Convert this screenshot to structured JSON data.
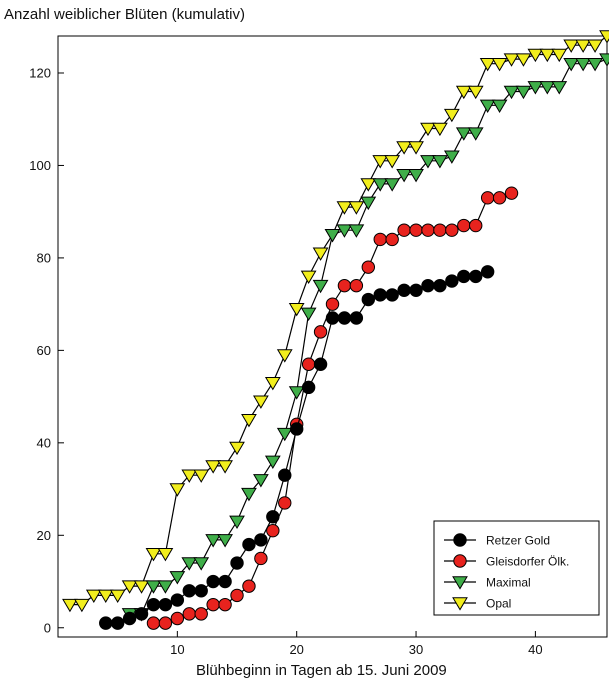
{
  "chart_data": {
    "type": "line",
    "title": "Anzahl weiblicher Blüten (kumulativ)",
    "xlabel": "Blühbeginn in Tagen ab 15. Juni 2009",
    "ylabel": "",
    "xlim": [
      0,
      46
    ],
    "ylim": [
      -2,
      128
    ],
    "x_ticks": [
      10,
      20,
      30,
      40
    ],
    "y_ticks": [
      0,
      20,
      40,
      60,
      80,
      100,
      120
    ],
    "legend_position": "bottom-right",
    "series": [
      {
        "name": "Retzer Gold",
        "marker": "circle",
        "color": "#000000",
        "points": [
          [
            4,
            1
          ],
          [
            5,
            1
          ],
          [
            6,
            2
          ],
          [
            7,
            3
          ],
          [
            8,
            5
          ],
          [
            9,
            5
          ],
          [
            10,
            6
          ],
          [
            11,
            8
          ],
          [
            12,
            8
          ],
          [
            13,
            10
          ],
          [
            14,
            10
          ],
          [
            15,
            14
          ],
          [
            16,
            18
          ],
          [
            17,
            19
          ],
          [
            18,
            24
          ],
          [
            19,
            33
          ],
          [
            20,
            43
          ],
          [
            21,
            52
          ],
          [
            22,
            57
          ],
          [
            23,
            67
          ],
          [
            24,
            67
          ],
          [
            25,
            67
          ],
          [
            26,
            71
          ],
          [
            27,
            72
          ],
          [
            28,
            72
          ],
          [
            29,
            73
          ],
          [
            30,
            73
          ],
          [
            31,
            74
          ],
          [
            32,
            74
          ],
          [
            33,
            75
          ],
          [
            34,
            76
          ],
          [
            35,
            76
          ],
          [
            36,
            77
          ]
        ]
      },
      {
        "name": "Gleisdorfer Ölk.",
        "marker": "circle",
        "color": "#e8231e",
        "points": [
          [
            8,
            1
          ],
          [
            9,
            1
          ],
          [
            10,
            2
          ],
          [
            11,
            3
          ],
          [
            12,
            3
          ],
          [
            13,
            5
          ],
          [
            14,
            5
          ],
          [
            15,
            7
          ],
          [
            16,
            9
          ],
          [
            17,
            15
          ],
          [
            18,
            21
          ],
          [
            19,
            27
          ],
          [
            20,
            44
          ],
          [
            21,
            57
          ],
          [
            22,
            64
          ],
          [
            23,
            70
          ],
          [
            24,
            74
          ],
          [
            25,
            74
          ],
          [
            26,
            78
          ],
          [
            27,
            84
          ],
          [
            28,
            84
          ],
          [
            29,
            86
          ],
          [
            30,
            86
          ],
          [
            31,
            86
          ],
          [
            32,
            86
          ],
          [
            33,
            86
          ],
          [
            34,
            87
          ],
          [
            35,
            87
          ],
          [
            36,
            93
          ],
          [
            37,
            93
          ],
          [
            38,
            94
          ]
        ]
      },
      {
        "name": "Maximal",
        "marker": "triangle-down",
        "color": "#3fae49",
        "points": [
          [
            6,
            3
          ],
          [
            7,
            3
          ],
          [
            8,
            9
          ],
          [
            9,
            9
          ],
          [
            10,
            11
          ],
          [
            11,
            14
          ],
          [
            12,
            14
          ],
          [
            13,
            19
          ],
          [
            14,
            19
          ],
          [
            15,
            23
          ],
          [
            16,
            29
          ],
          [
            17,
            32
          ],
          [
            18,
            36
          ],
          [
            19,
            42
          ],
          [
            20,
            51
          ],
          [
            21,
            68
          ],
          [
            22,
            74
          ],
          [
            23,
            85
          ],
          [
            24,
            86
          ],
          [
            25,
            86
          ],
          [
            26,
            92
          ],
          [
            27,
            96
          ],
          [
            28,
            96
          ],
          [
            29,
            98
          ],
          [
            30,
            98
          ],
          [
            31,
            101
          ],
          [
            32,
            101
          ],
          [
            33,
            102
          ],
          [
            34,
            107
          ],
          [
            35,
            107
          ],
          [
            36,
            113
          ],
          [
            37,
            113
          ],
          [
            38,
            116
          ],
          [
            39,
            116
          ],
          [
            40,
            117
          ],
          [
            41,
            117
          ],
          [
            42,
            117
          ],
          [
            43,
            122
          ],
          [
            44,
            122
          ],
          [
            45,
            122
          ],
          [
            46,
            123
          ]
        ]
      },
      {
        "name": "Opal",
        "marker": "triangle-down",
        "color": "#f2ee1d",
        "points": [
          [
            1,
            5
          ],
          [
            2,
            5
          ],
          [
            3,
            7
          ],
          [
            4,
            7
          ],
          [
            5,
            7
          ],
          [
            6,
            9
          ],
          [
            7,
            9
          ],
          [
            8,
            16
          ],
          [
            9,
            16
          ],
          [
            10,
            30
          ],
          [
            11,
            33
          ],
          [
            12,
            33
          ],
          [
            13,
            35
          ],
          [
            14,
            35
          ],
          [
            15,
            39
          ],
          [
            16,
            45
          ],
          [
            17,
            49
          ],
          [
            18,
            53
          ],
          [
            19,
            59
          ],
          [
            20,
            69
          ],
          [
            21,
            76
          ],
          [
            22,
            81
          ],
          [
            23,
            85
          ],
          [
            24,
            91
          ],
          [
            25,
            91
          ],
          [
            26,
            96
          ],
          [
            27,
            101
          ],
          [
            28,
            101
          ],
          [
            29,
            104
          ],
          [
            30,
            104
          ],
          [
            31,
            108
          ],
          [
            32,
            108
          ],
          [
            33,
            111
          ],
          [
            34,
            116
          ],
          [
            35,
            116
          ],
          [
            36,
            122
          ],
          [
            37,
            122
          ],
          [
            38,
            123
          ],
          [
            39,
            123
          ],
          [
            40,
            124
          ],
          [
            41,
            124
          ],
          [
            42,
            124
          ],
          [
            43,
            126
          ],
          [
            44,
            126
          ],
          [
            45,
            126
          ],
          [
            46,
            128
          ]
        ]
      }
    ]
  }
}
